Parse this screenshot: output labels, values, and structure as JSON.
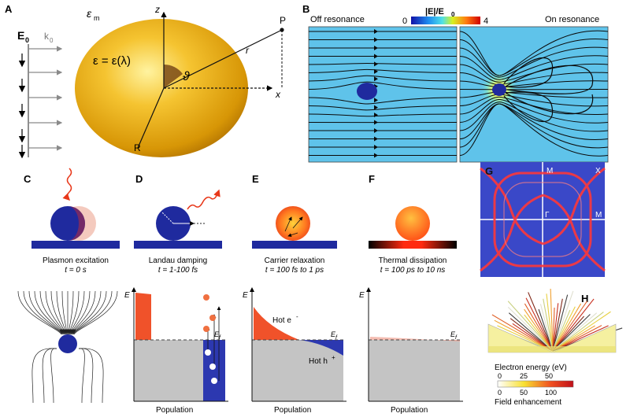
{
  "panels": {
    "A": {
      "letter": "A",
      "e0": "E",
      "e0_sub": "0",
      "k0": "k",
      "k0_sub": "0",
      "epsilon_m": "ε",
      "epsilon_m_sub": "m",
      "epsilon_eq": "ε = ε(λ)",
      "z": "z",
      "x": "x",
      "r": "r",
      "p": "P",
      "radius": "R",
      "theta": "ϑ"
    },
    "B": {
      "letter": "B",
      "off": "Off resonance",
      "on": "On resonance",
      "colorbar_title": "|E|/E",
      "colorbar_title_sub": "0",
      "cmin": "0",
      "cmax": "4"
    },
    "C": {
      "letter": "C",
      "title": "Plasmon excitation",
      "time": "t = 0 s"
    },
    "D": {
      "letter": "D",
      "title": "Landau damping",
      "time": "t = 1-100 fs"
    },
    "E": {
      "letter": "E",
      "title": "Carrier relaxation",
      "time": "t = 100 fs to 1 ps"
    },
    "F": {
      "letter": "F",
      "title": "Thermal dissipation",
      "time": "t = 100 ps to 10 ns"
    },
    "G": {
      "letter": "G",
      "m1": "M",
      "x": "X",
      "gamma": "Γ",
      "m2": "M"
    },
    "H": {
      "letter": "H",
      "energy_label": "Electron energy (eV)",
      "energy_ticks": [
        "0",
        "25",
        "50"
      ],
      "field_ticks": [
        "0",
        "50",
        "100"
      ],
      "field_label": "Field enhancement"
    }
  },
  "energy_plots": {
    "e_axis": "E",
    "population": "Population",
    "fermi": "E",
    "fermi_sub": "f",
    "hot_e": "Hot e",
    "hot_e_sup": "-",
    "hot_h": "Hot h",
    "hot_h_sup": "+"
  },
  "colors": {
    "gold": "#e6a80f",
    "navy": "#1f2a9e",
    "field_bg": "#5fc3ea",
    "hot_red": "#f0522a",
    "gray": "#c4c4c4",
    "bz_bg": "#3a48c8",
    "bz_line": "#ff3030"
  }
}
